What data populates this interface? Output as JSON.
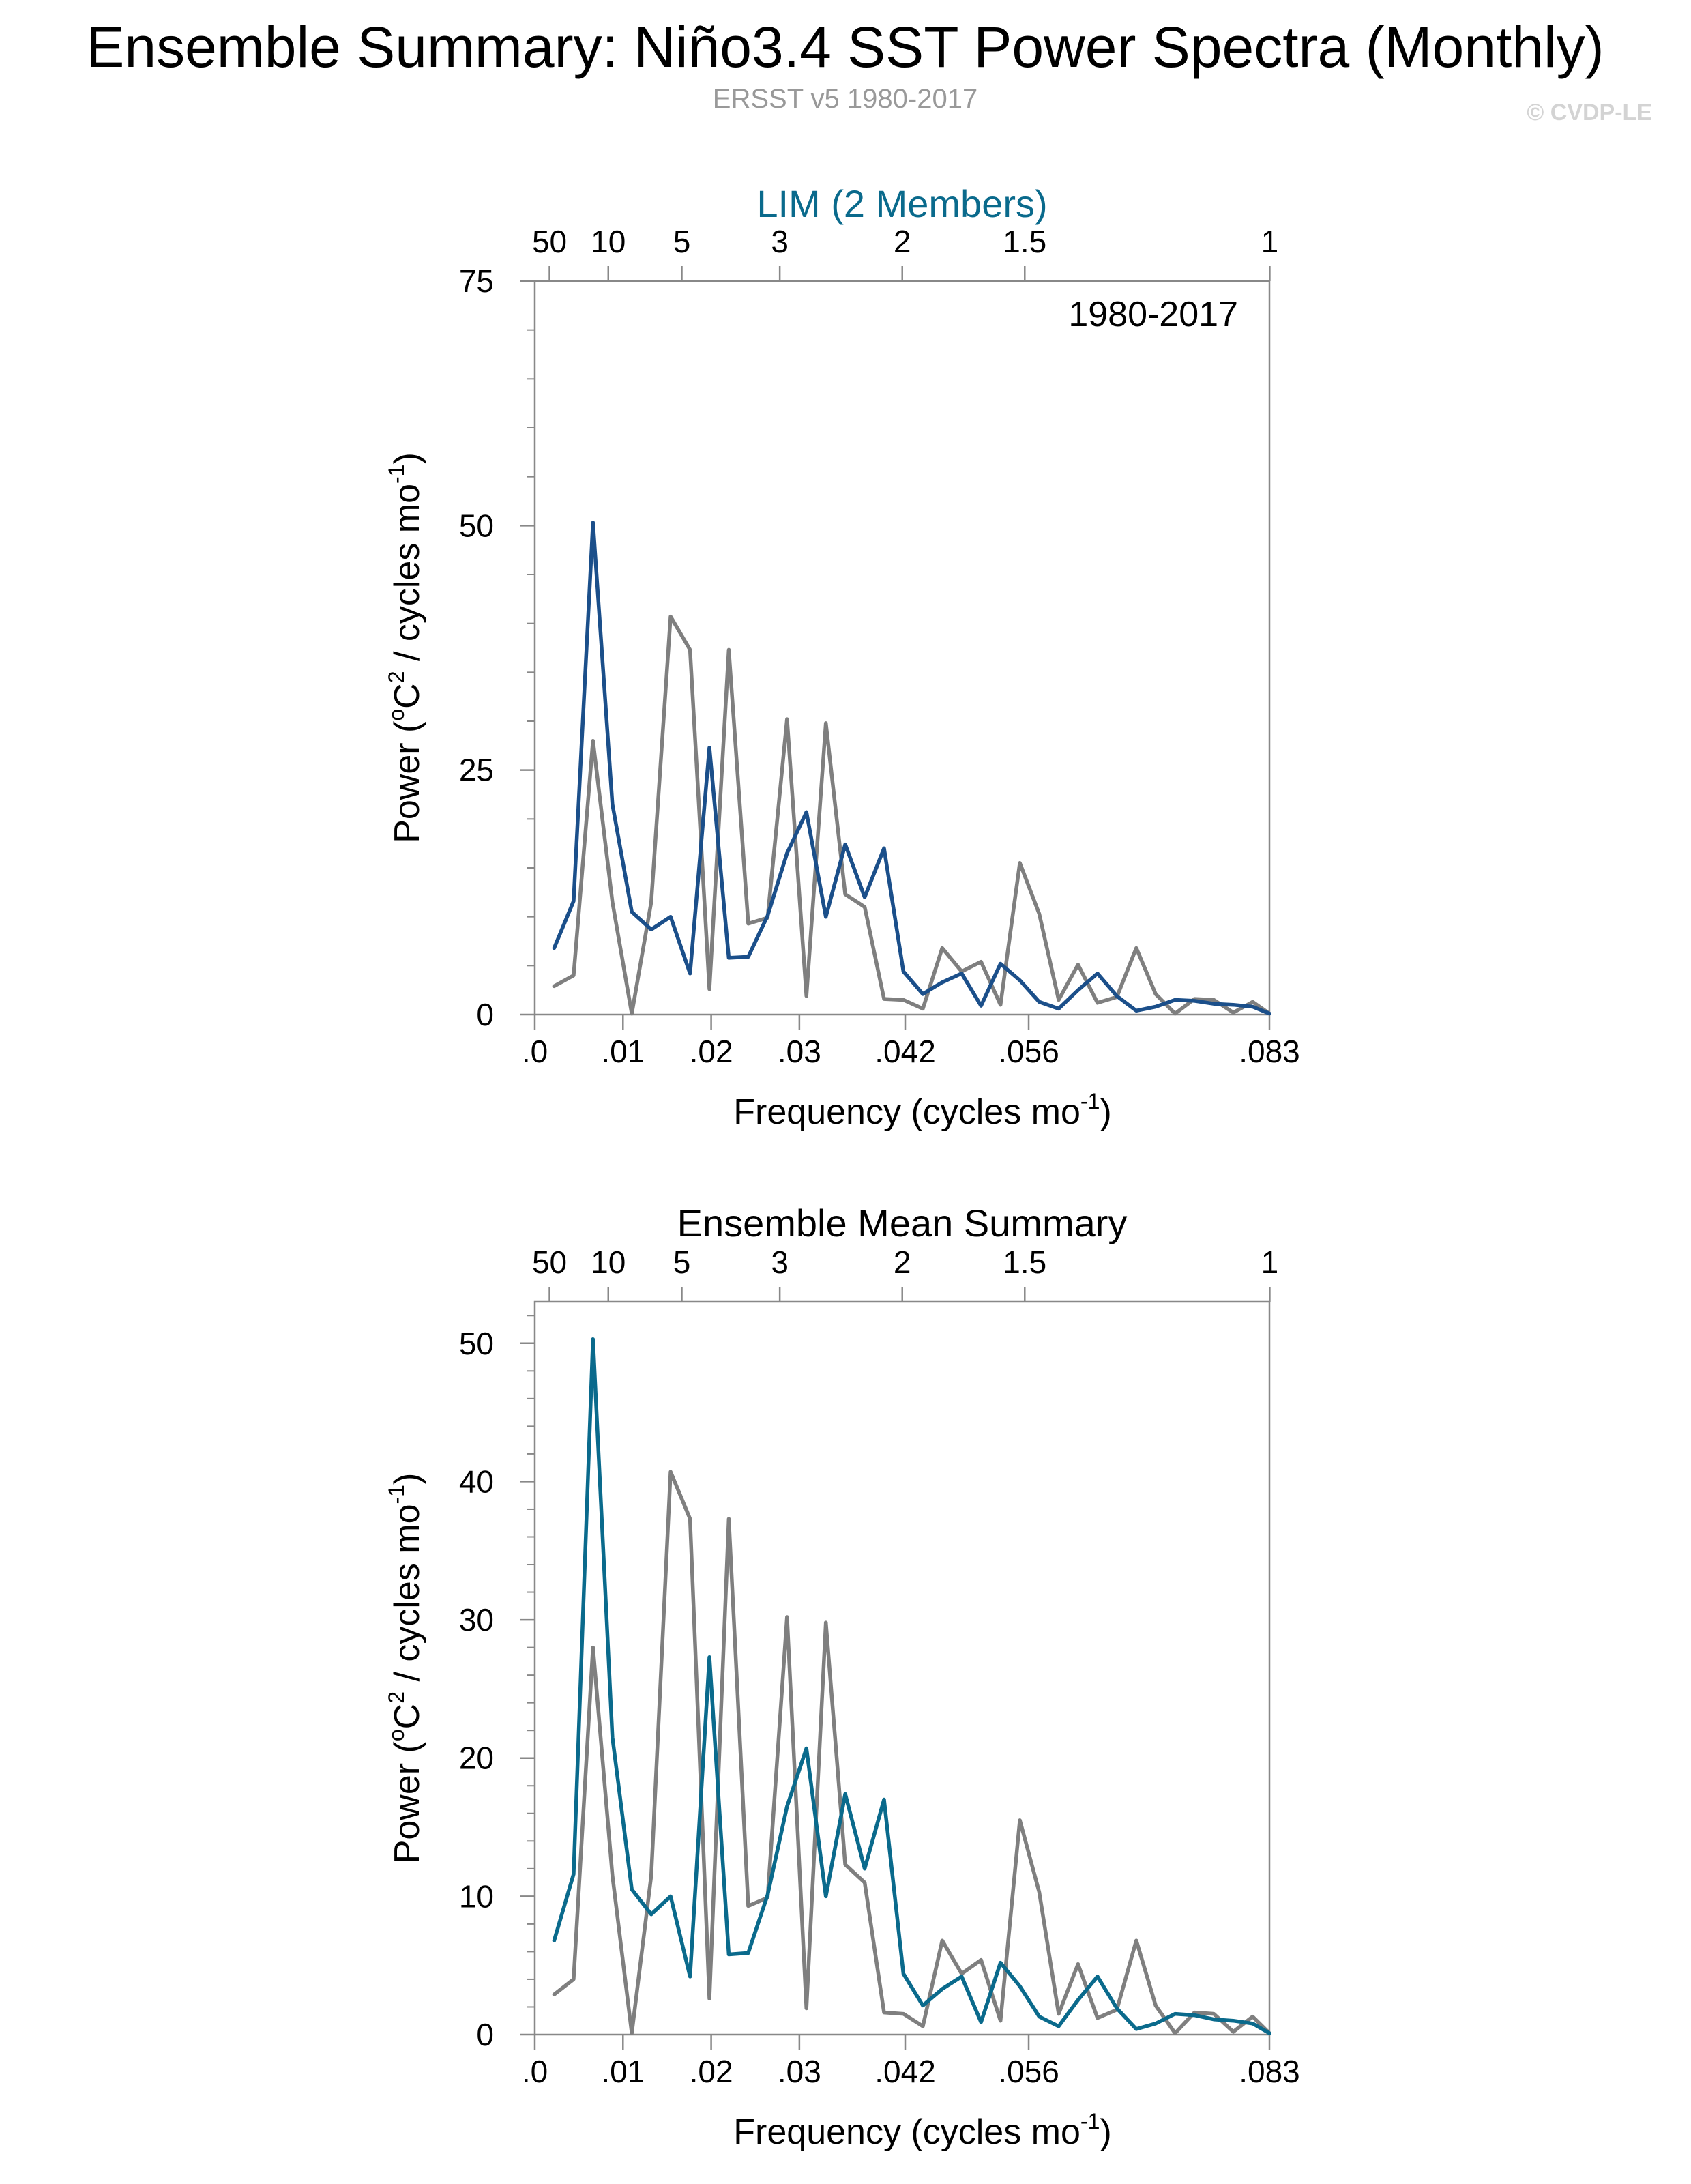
{
  "title": "Ensemble Summary: Niño3.4 SST Power Spectra (Monthly)",
  "subtitle": "ERSST v5 1980-2017",
  "watermark": "© CVDP-LE",
  "colors": {
    "text": "#000000",
    "subtitle": "#999999",
    "watermark": "#d3d3d3",
    "axis": "#888888",
    "observed": "#7f7f7f",
    "member": "#1b4f8a",
    "ensemble_mean": "#0a6a8c",
    "panel_title_top": "#0a6a8c"
  },
  "chart_data": [
    {
      "type": "line",
      "title": "LIM (2 Members)",
      "annotation": "1980-2017",
      "xlabel": "Frequency (cycles mo",
      "xlabel_sup": "-1",
      "xlabel_end": ")",
      "ylabel_pre": "Power (",
      "ylabel_sup1": "o",
      "ylabel_mid": "C",
      "ylabel_sup2": "2",
      "ylabel_post": " / cycles mo",
      "ylabel_sup3": "-1",
      "ylabel_end": ")",
      "xlim": [
        0,
        0.0833
      ],
      "ylim": [
        0,
        75
      ],
      "yticks": [
        0,
        25,
        50,
        75
      ],
      "yticklabels": [
        "0",
        "25",
        "50",
        "75"
      ],
      "yminor": 5,
      "xticks": [
        0,
        0.01,
        0.02,
        0.03,
        0.042,
        0.056,
        0.0833
      ],
      "xticklabels": [
        ".0",
        ".01",
        ".02",
        ".03",
        ".042",
        ".056",
        ".083"
      ],
      "period_ticks_months": [
        600,
        120,
        60,
        36,
        24,
        18,
        12
      ],
      "period_ticklabels": [
        "50",
        "10",
        "5",
        "3",
        "2",
        "1.5",
        "1"
      ],
      "series": [
        {
          "name": "ERSST v5",
          "color_key": "observed",
          "x": [
            0.0022,
            0.0044,
            0.0066,
            0.0088,
            0.011,
            0.0132,
            0.0154,
            0.0176,
            0.0198,
            0.022,
            0.0242,
            0.0264,
            0.0286,
            0.0308,
            0.033,
            0.0352,
            0.0374,
            0.0396,
            0.0418,
            0.044,
            0.0462,
            0.0484,
            0.0506,
            0.0528,
            0.055,
            0.0572,
            0.0594,
            0.0616,
            0.0638,
            0.066,
            0.0682,
            0.0704,
            0.0726,
            0.0748,
            0.077,
            0.0792,
            0.0814,
            0.0833
          ],
          "y": [
            2.9,
            4.0,
            28.0,
            11.5,
            0.1,
            11.5,
            40.7,
            37.3,
            2.6,
            37.3,
            9.3,
            9.9,
            30.2,
            1.9,
            29.8,
            12.3,
            11.0,
            1.6,
            1.5,
            0.6,
            6.8,
            4.4,
            5.4,
            1.0,
            15.5,
            10.3,
            1.5,
            5.1,
            1.2,
            1.8,
            6.8,
            2.1,
            0.1,
            1.6,
            1.5,
            0.2,
            1.3,
            0.1
          ]
        },
        {
          "name": "LIM member",
          "color_key": "member",
          "x": [
            0.0022,
            0.0044,
            0.0066,
            0.0088,
            0.011,
            0.0132,
            0.0154,
            0.0176,
            0.0198,
            0.022,
            0.0242,
            0.0264,
            0.0286,
            0.0308,
            0.033,
            0.0352,
            0.0374,
            0.0396,
            0.0418,
            0.044,
            0.0462,
            0.0484,
            0.0506,
            0.0528,
            0.055,
            0.0572,
            0.0594,
            0.0616,
            0.0638,
            0.066,
            0.0682,
            0.0704,
            0.0726,
            0.0748,
            0.077,
            0.0792,
            0.0814,
            0.0833
          ],
          "y": [
            6.8,
            11.6,
            50.3,
            21.5,
            10.5,
            8.7,
            10.0,
            4.2,
            27.3,
            5.8,
            5.9,
            10.1,
            16.5,
            20.7,
            10.0,
            17.4,
            12.0,
            17.0,
            4.4,
            2.1,
            3.3,
            4.2,
            0.9,
            5.2,
            3.5,
            1.3,
            0.6,
            2.5,
            4.2,
            1.9,
            0.4,
            0.8,
            1.5,
            1.4,
            1.1,
            1.0,
            0.8,
            0.1
          ]
        }
      ]
    },
    {
      "type": "line",
      "title": "Ensemble Mean Summary",
      "annotation": "",
      "xlabel": "Frequency (cycles mo",
      "xlabel_sup": "-1",
      "xlabel_end": ")",
      "ylabel_pre": "Power (",
      "ylabel_sup1": "o",
      "ylabel_mid": "C",
      "ylabel_sup2": "2",
      "ylabel_post": " / cycles mo",
      "ylabel_sup3": "-1",
      "ylabel_end": ")",
      "xlim": [
        0,
        0.0833
      ],
      "ylim": [
        0,
        53
      ],
      "yticks": [
        0,
        10,
        20,
        30,
        40,
        50
      ],
      "yticklabels": [
        "0",
        "10",
        "20",
        "30",
        "40",
        "50"
      ],
      "yminor": 2,
      "xticks": [
        0,
        0.01,
        0.02,
        0.03,
        0.042,
        0.056,
        0.0833
      ],
      "xticklabels": [
        ".0",
        ".01",
        ".02",
        ".03",
        ".042",
        ".056",
        ".083"
      ],
      "period_ticks_months": [
        600,
        120,
        60,
        36,
        24,
        18,
        12
      ],
      "period_ticklabels": [
        "50",
        "10",
        "5",
        "3",
        "2",
        "1.5",
        "1"
      ],
      "series": [
        {
          "name": "ERSST v5",
          "color_key": "observed",
          "x": [
            0.0022,
            0.0044,
            0.0066,
            0.0088,
            0.011,
            0.0132,
            0.0154,
            0.0176,
            0.0198,
            0.022,
            0.0242,
            0.0264,
            0.0286,
            0.0308,
            0.033,
            0.0352,
            0.0374,
            0.0396,
            0.0418,
            0.044,
            0.0462,
            0.0484,
            0.0506,
            0.0528,
            0.055,
            0.0572,
            0.0594,
            0.0616,
            0.0638,
            0.066,
            0.0682,
            0.0704,
            0.0726,
            0.0748,
            0.077,
            0.0792,
            0.0814,
            0.0833
          ],
          "y": [
            2.9,
            4.0,
            28.0,
            11.5,
            0.1,
            11.5,
            40.7,
            37.3,
            2.6,
            37.3,
            9.3,
            9.9,
            30.2,
            1.9,
            29.8,
            12.3,
            11.0,
            1.6,
            1.5,
            0.6,
            6.8,
            4.4,
            5.4,
            1.0,
            15.5,
            10.3,
            1.5,
            5.1,
            1.2,
            1.8,
            6.8,
            2.1,
            0.1,
            1.6,
            1.5,
            0.2,
            1.3,
            0.1
          ]
        },
        {
          "name": "Ensemble mean",
          "color_key": "ensemble_mean",
          "x": [
            0.0022,
            0.0044,
            0.0066,
            0.0088,
            0.011,
            0.0132,
            0.0154,
            0.0176,
            0.0198,
            0.022,
            0.0242,
            0.0264,
            0.0286,
            0.0308,
            0.033,
            0.0352,
            0.0374,
            0.0396,
            0.0418,
            0.044,
            0.0462,
            0.0484,
            0.0506,
            0.0528,
            0.055,
            0.0572,
            0.0594,
            0.0616,
            0.0638,
            0.066,
            0.0682,
            0.0704,
            0.0726,
            0.0748,
            0.077,
            0.0792,
            0.0814,
            0.0833
          ],
          "y": [
            6.8,
            11.6,
            50.3,
            21.5,
            10.5,
            8.7,
            10.0,
            4.2,
            27.3,
            5.8,
            5.9,
            10.1,
            16.5,
            20.7,
            10.0,
            17.4,
            12.0,
            17.0,
            4.4,
            2.1,
            3.3,
            4.2,
            0.9,
            5.2,
            3.5,
            1.3,
            0.6,
            2.5,
            4.2,
            1.9,
            0.4,
            0.8,
            1.5,
            1.4,
            1.1,
            1.0,
            0.8,
            0.1
          ]
        }
      ]
    }
  ]
}
